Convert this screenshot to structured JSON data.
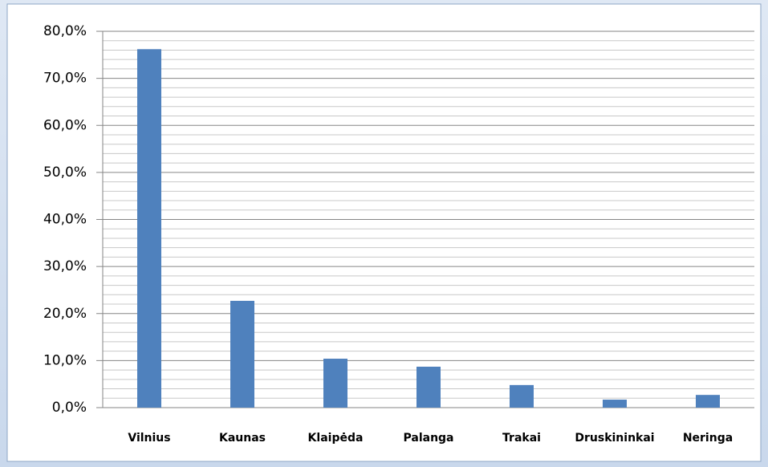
{
  "chart_data": {
    "type": "bar",
    "categories": [
      "Vilnius",
      "Kaunas",
      "Klaipėda",
      "Palanga",
      "Trakai",
      "Druskininkai",
      "Neringa"
    ],
    "values": [
      76.2,
      22.7,
      10.4,
      8.7,
      4.8,
      1.7,
      2.7
    ],
    "color": "#4f81bd",
    "ylim": [
      0,
      80
    ],
    "yticks": [
      {
        "value": 0,
        "label": "0,0%"
      },
      {
        "value": 10,
        "label": "10,0%"
      },
      {
        "value": 20,
        "label": "20,0%"
      },
      {
        "value": 30,
        "label": "30,0%"
      },
      {
        "value": 40,
        "label": "40,0%"
      },
      {
        "value": 50,
        "label": "50,0%"
      },
      {
        "value": 60,
        "label": "60,0%"
      },
      {
        "value": 70,
        "label": "70,0%"
      },
      {
        "value": 80,
        "label": "80,0%"
      }
    ],
    "minor_yticks": [
      2,
      4,
      6,
      8,
      12,
      14,
      16,
      18,
      22,
      24,
      26,
      28,
      32,
      34,
      36,
      38,
      42,
      44,
      46,
      48,
      52,
      54,
      56,
      58,
      62,
      64,
      66,
      68,
      72,
      74,
      76,
      78
    ],
    "grid": true
  }
}
